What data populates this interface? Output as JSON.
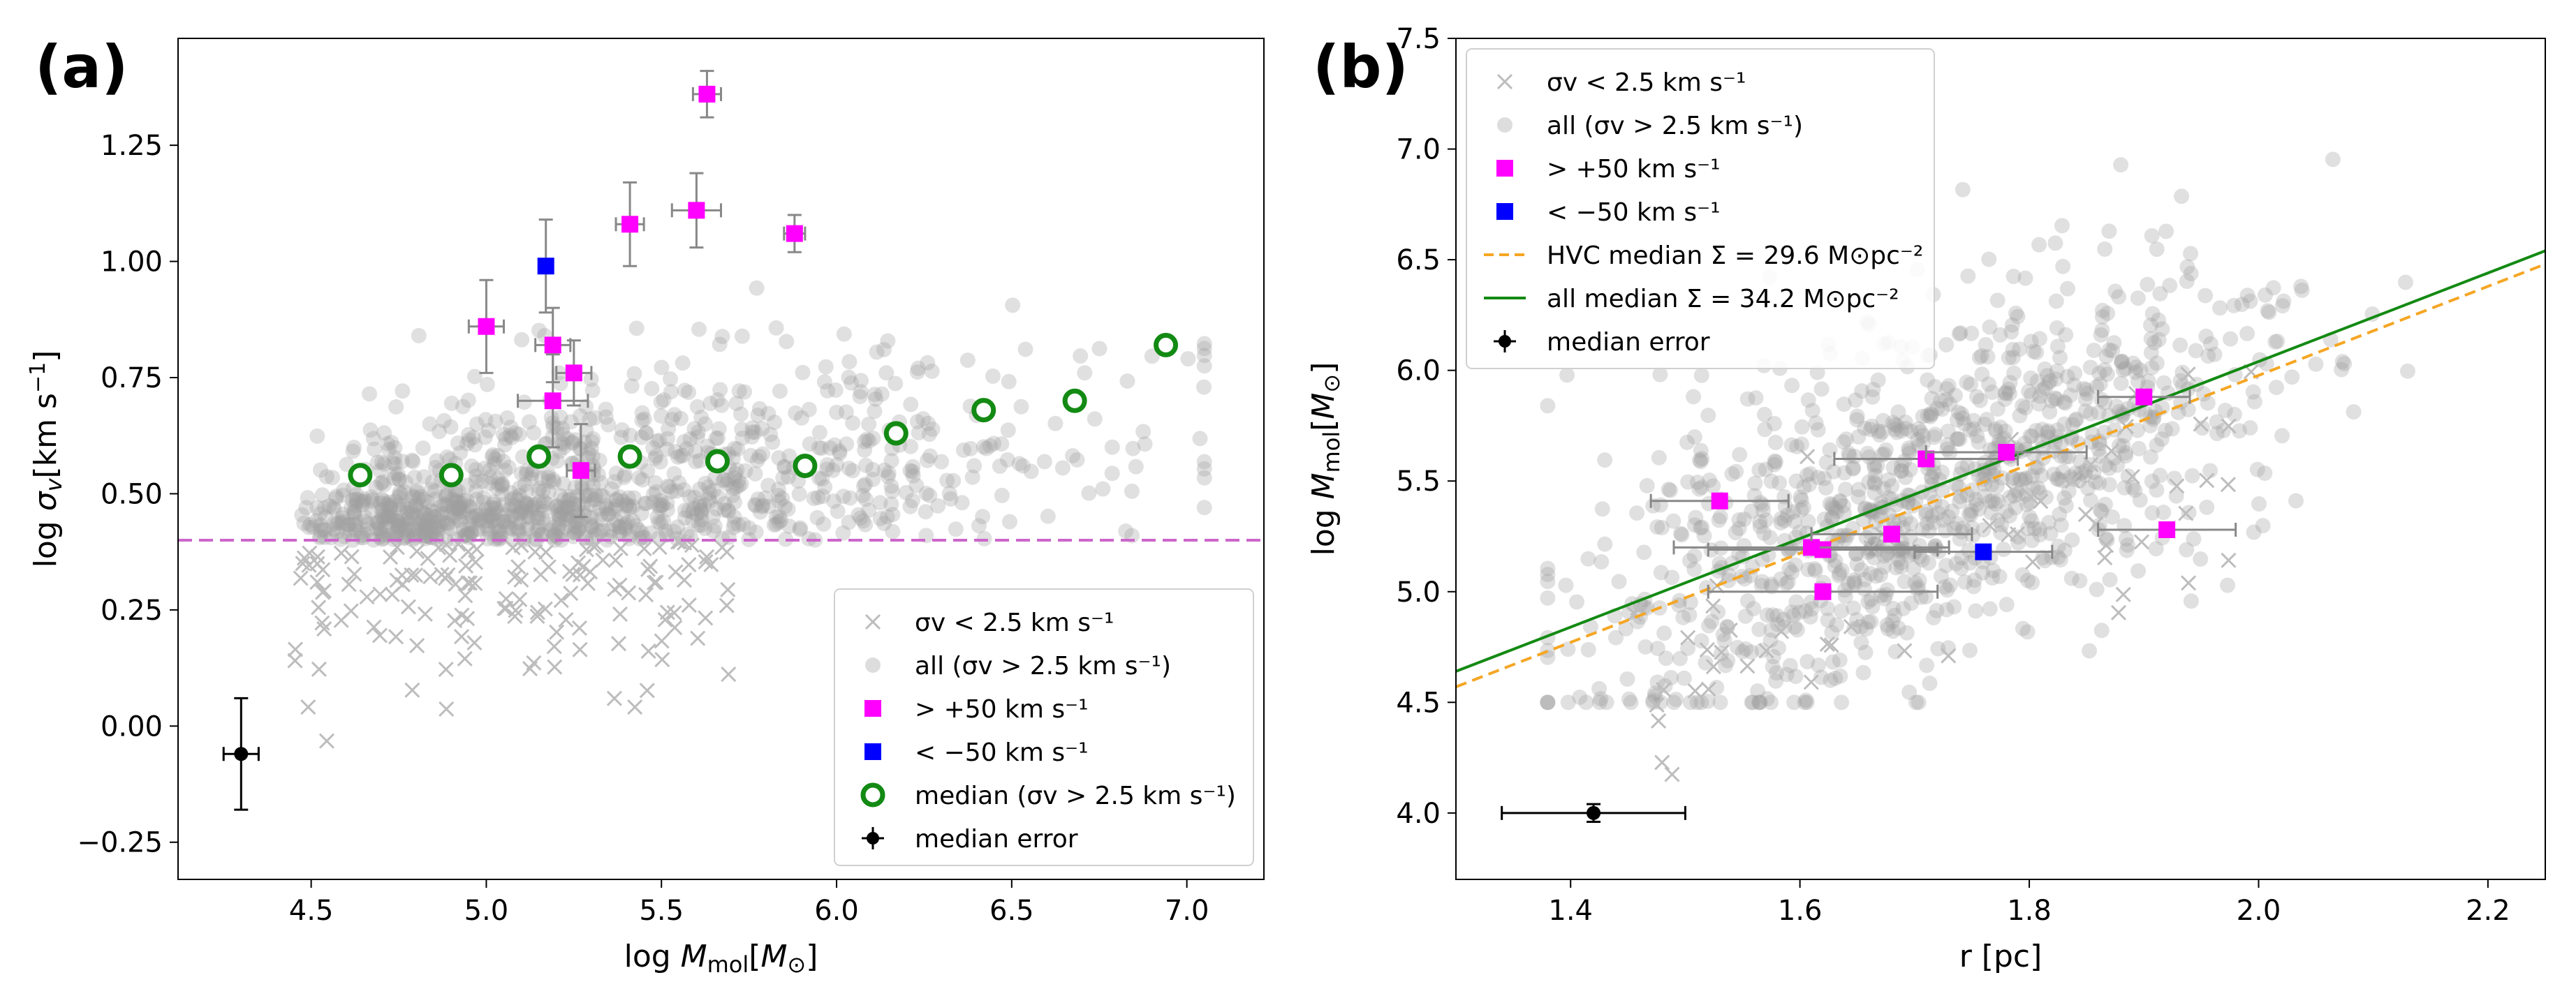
{
  "figure": {
    "panel_letters": [
      "(a)",
      "(b)"
    ]
  },
  "colors": {
    "grey_points": "#9e9e9e",
    "grey_cross": "#bdbdbd",
    "magenta": "#ff00ff",
    "blue": "#0000ff",
    "green": "#138a13",
    "orange": "#f5a623",
    "threshold": "#cc66cc",
    "errorbar": "#888888"
  },
  "chart_data": [
    {
      "type": "scatter",
      "panel": "(a)",
      "xlabel": "log M_mol[M⊙]",
      "ylabel": "log σv[km s⁻¹]",
      "xlim": [
        4.12,
        7.22
      ],
      "ylim": [
        -0.33,
        1.48
      ],
      "xticks": [
        4.5,
        5.0,
        5.5,
        6.0,
        6.5,
        7.0
      ],
      "xtick_labels": [
        "4.5",
        "5.0",
        "5.5",
        "6.0",
        "6.5",
        "7.0"
      ],
      "yticks": [
        -0.25,
        0.0,
        0.25,
        0.5,
        0.75,
        1.0,
        1.25
      ],
      "ytick_labels": [
        "−0.25",
        "0.00",
        "0.25",
        "0.50",
        "0.75",
        "1.00",
        "1.25"
      ],
      "threshold_line": {
        "y": 0.4,
        "label": "σv = 2.5 km s⁻¹ threshold"
      },
      "series": [
        {
          "name": "positive_hvc",
          "legend": "> +50 km s⁻¹",
          "points": [
            {
              "x": 5.0,
              "y": 0.86,
              "xerr": 0.05,
              "yerr": 0.1
            },
            {
              "x": 5.19,
              "y": 0.82,
              "xerr": 0.05,
              "yerr": 0.08
            },
            {
              "x": 5.25,
              "y": 0.76,
              "xerr": 0.05,
              "yerr": 0.07
            },
            {
              "x": 5.19,
              "y": 0.7,
              "xerr": 0.1,
              "yerr": 0.1
            },
            {
              "x": 5.27,
              "y": 0.55,
              "xerr": 0.04,
              "yerr": 0.1
            },
            {
              "x": 5.41,
              "y": 1.08,
              "xerr": 0.04,
              "yerr": 0.09
            },
            {
              "x": 5.6,
              "y": 1.11,
              "xerr": 0.07,
              "yerr": 0.08
            },
            {
              "x": 5.63,
              "y": 1.36,
              "xerr": 0.04,
              "yerr": 0.05
            },
            {
              "x": 5.88,
              "y": 1.06,
              "xerr": 0.03,
              "yerr": 0.04
            }
          ]
        },
        {
          "name": "negative_hvc",
          "legend": "< −50 km s⁻¹",
          "points": [
            {
              "x": 5.17,
              "y": 0.99,
              "xerr": 0.0,
              "yerr": 0.1
            }
          ]
        },
        {
          "name": "median",
          "legend": "median (σv > 2.5 km s⁻¹)",
          "points": [
            {
              "x": 4.64,
              "y": 0.54
            },
            {
              "x": 4.9,
              "y": 0.54
            },
            {
              "x": 5.15,
              "y": 0.58
            },
            {
              "x": 5.41,
              "y": 0.58
            },
            {
              "x": 5.66,
              "y": 0.57
            },
            {
              "x": 5.91,
              "y": 0.56
            },
            {
              "x": 6.17,
              "y": 0.63
            },
            {
              "x": 6.42,
              "y": 0.68
            },
            {
              "x": 6.68,
              "y": 0.7
            },
            {
              "x": 6.94,
              "y": 0.82
            }
          ]
        },
        {
          "name": "median_error",
          "legend": "median error",
          "points": [
            {
              "x": 4.3,
              "y": -0.06,
              "xerr": 0.05,
              "yerr": 0.12
            }
          ]
        }
      ],
      "background_all": {
        "legend": "all (σv > 2.5 km s⁻¹)",
        "n": 1100,
        "x_range": [
          4.45,
          7.05
        ],
        "y_floor": 0.4
      },
      "background_low": {
        "legend": "σv < 2.5 km s⁻¹",
        "n": 150,
        "x_range": [
          4.45,
          5.7
        ]
      },
      "legend_entries": [
        {
          "symbol": "cross",
          "label": "σv < 2.5 km s⁻¹"
        },
        {
          "symbol": "grey-dot",
          "label": "all (σv > 2.5 km s⁻¹)"
        },
        {
          "symbol": "magenta-square",
          "label": "> +50 km s⁻¹"
        },
        {
          "symbol": "blue-square",
          "label": "< −50 km s⁻¹"
        },
        {
          "symbol": "green-ring",
          "label": "median (σv > 2.5 km s⁻¹)"
        },
        {
          "symbol": "errorbar",
          "label": "median error"
        }
      ],
      "legend_placement": "lower-right"
    },
    {
      "type": "scatter",
      "panel": "(b)",
      "xlabel": "r [pc]",
      "ylabel": "log M_mol[M⊙]",
      "xlim": [
        1.3,
        2.25
      ],
      "ylim": [
        3.7,
        7.5
      ],
      "xticks": [
        1.4,
        1.6,
        1.8,
        2.0,
        2.2
      ],
      "xtick_labels": [
        "1.4",
        "1.6",
        "1.8",
        "2.0",
        "2.2"
      ],
      "yticks": [
        4.0,
        4.5,
        5.0,
        5.5,
        6.0,
        6.5,
        7.0,
        7.5
      ],
      "ytick_labels": [
        "4.0",
        "4.5",
        "5.0",
        "5.5",
        "6.0",
        "6.5",
        "7.0",
        "7.5"
      ],
      "lines": [
        {
          "name": "hvc_median",
          "legend": "HVC median Σ = 29.6 M⊙pc⁻²",
          "style": "dashed",
          "points": [
            [
              1.3,
              4.57
            ],
            [
              2.25,
              6.48
            ]
          ]
        },
        {
          "name": "all_median",
          "legend": "all median Σ = 34.2 M⊙pc⁻²",
          "style": "solid",
          "points": [
            [
              1.3,
              4.64
            ],
            [
              2.25,
              6.54
            ]
          ]
        }
      ],
      "series": [
        {
          "name": "positive_hvc",
          "legend": "> +50 km s⁻¹",
          "points": [
            {
              "x": 1.53,
              "y": 5.41,
              "xerr": 0.06,
              "yerr": 0.0
            },
            {
              "x": 1.62,
              "y": 5.19,
              "xerr": 0.1,
              "yerr": 0.0
            },
            {
              "x": 1.61,
              "y": 5.2,
              "xerr": 0.12,
              "yerr": 0.0
            },
            {
              "x": 1.62,
              "y": 5.0,
              "xerr": 0.1,
              "yerr": 0.0
            },
            {
              "x": 1.68,
              "y": 5.26,
              "xerr": 0.07,
              "yerr": 0.0
            },
            {
              "x": 1.71,
              "y": 5.6,
              "xerr": 0.08,
              "yerr": 0.0
            },
            {
              "x": 1.78,
              "y": 5.63,
              "xerr": 0.07,
              "yerr": 0.0
            },
            {
              "x": 1.9,
              "y": 5.88,
              "xerr": 0.04,
              "yerr": 0.0
            },
            {
              "x": 1.92,
              "y": 5.28,
              "xerr": 0.06,
              "yerr": 0.0
            }
          ]
        },
        {
          "name": "negative_hvc",
          "legend": "< −50 km s⁻¹",
          "points": [
            {
              "x": 1.76,
              "y": 5.18,
              "xerr": 0.06,
              "yerr": 0.0
            }
          ]
        },
        {
          "name": "median_error",
          "legend": "median error",
          "points": [
            {
              "x": 1.42,
              "y": 4.0,
              "xerr": 0.08,
              "yerr": 0.04
            }
          ]
        }
      ],
      "background_all": {
        "legend": "all (σv > 2.5 km s⁻¹)",
        "n": 1100,
        "x_range": [
          1.38,
          2.13
        ]
      },
      "background_low": {
        "legend": "σv < 2.5 km s⁻¹",
        "n": 60,
        "x_range": [
          1.45,
          2.0
        ]
      },
      "legend_entries": [
        {
          "symbol": "cross",
          "label": "σv < 2.5 km s⁻¹"
        },
        {
          "symbol": "grey-dot",
          "label": "all (σv > 2.5 km s⁻¹)"
        },
        {
          "symbol": "magenta-square",
          "label": "> +50 km s⁻¹"
        },
        {
          "symbol": "blue-square",
          "label": "< −50 km s⁻¹"
        },
        {
          "symbol": "orange-dash",
          "label": "HVC median Σ = 29.6 M⊙pc⁻²"
        },
        {
          "symbol": "green-line",
          "label": "all median Σ = 34.2 M⊙pc⁻²"
        },
        {
          "symbol": "errorbar",
          "label": "median error"
        }
      ],
      "legend_placement": "upper-left"
    }
  ]
}
